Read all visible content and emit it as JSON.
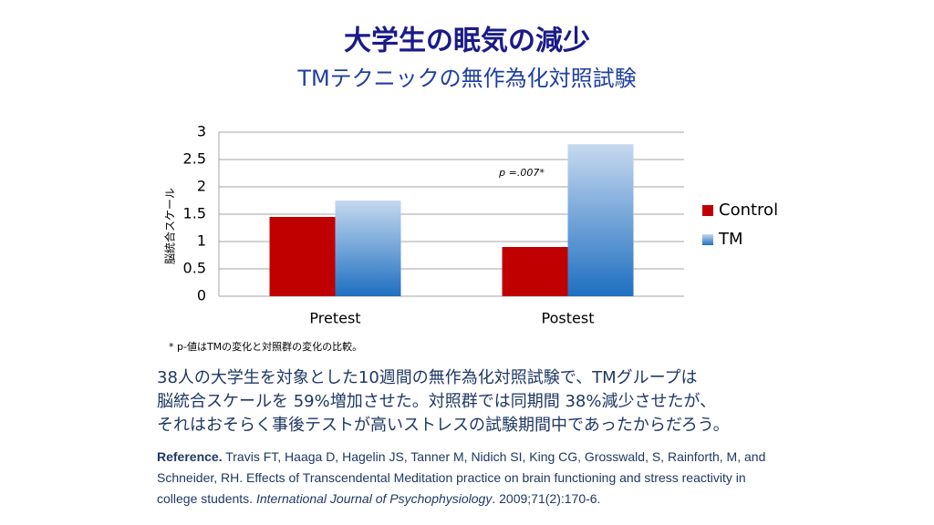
{
  "title": "大学生の眠気の減少",
  "subtitle": "TMテクニックの無作為化対照試験",
  "chart_data": {
    "type": "bar",
    "y_label": "脳統合スケール",
    "categories": [
      "Pretest",
      "Postest"
    ],
    "series": [
      {
        "name": "Control",
        "color": "#c00000",
        "values": [
          1.45,
          0.9
        ]
      },
      {
        "name": "TM",
        "color": "#1f6fc1",
        "values": [
          1.75,
          2.78
        ]
      }
    ],
    "annotation": "p =.007*",
    "ylim": [
      0,
      3
    ],
    "yticks": [
      0,
      0.5,
      1,
      1.5,
      2,
      2.5,
      3
    ],
    "grid": true,
    "legend": "right"
  },
  "footnote": "* p-値はTMの変化と対照群の変化の比較。",
  "body": [
    "38人の大学生を対象とした10週間の無作為化対照試験で、TMグループは",
    "脳統合スケールを 59%増加させた。対照群では同期間 38%減少させたが、",
    "それはおそらく事後テストが高いストレスの試験期間中であったからだろう。"
  ],
  "reference": {
    "label": "Reference.",
    "text": "Travis FT, Haaga D, Hagelin JS, Tanner M, Nidich SI, King CG, Grosswald, S, Rainforth, M, and Schneider, RH. Effects of Transcendental Meditation practice on brain functioning and stress reactivity in college students.",
    "journal": "International Journal of Psychophysiology",
    "citation": ". 2009;71(2):170-6."
  }
}
